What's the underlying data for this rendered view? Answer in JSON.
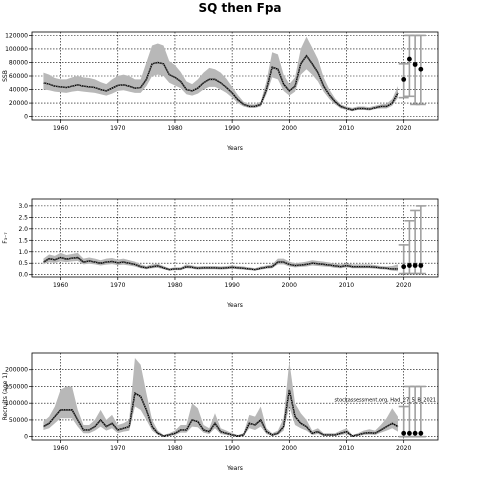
{
  "figure": {
    "title": "SQ then Fpa"
  },
  "chart_data": [
    {
      "type": "line",
      "xlabel": "Years",
      "ylabel": "SSB",
      "xlim": [
        1955,
        2026
      ],
      "ylim": [
        -5000,
        125000
      ],
      "xticks": [
        1960,
        1970,
        1980,
        1990,
        2000,
        2010,
        2020
      ],
      "yticks": [
        0,
        20000,
        40000,
        60000,
        80000,
        100000,
        120000
      ],
      "grid": true,
      "x": [
        1957,
        1958,
        1959,
        1960,
        1961,
        1962,
        1963,
        1964,
        1965,
        1966,
        1967,
        1968,
        1969,
        1970,
        1971,
        1972,
        1973,
        1974,
        1975,
        1976,
        1977,
        1978,
        1979,
        1980,
        1981,
        1982,
        1983,
        1984,
        1985,
        1986,
        1987,
        1988,
        1989,
        1990,
        1991,
        1992,
        1993,
        1994,
        1995,
        1996,
        1997,
        1998,
        1999,
        2000,
        2001,
        2002,
        2003,
        2004,
        2005,
        2006,
        2007,
        2008,
        2009,
        2010,
        2011,
        2012,
        2013,
        2014,
        2015,
        2016,
        2017,
        2018,
        2019
      ],
      "values": [
        50000,
        48000,
        45000,
        44000,
        43000,
        45000,
        47000,
        45000,
        44000,
        43000,
        40000,
        38000,
        42000,
        46000,
        47000,
        45000,
        42000,
        43000,
        55000,
        78000,
        80000,
        78000,
        62000,
        58000,
        52000,
        40000,
        38000,
        42000,
        50000,
        55000,
        55000,
        50000,
        43000,
        35000,
        25000,
        18000,
        15000,
        15000,
        18000,
        40000,
        73000,
        70000,
        48000,
        38000,
        45000,
        78000,
        90000,
        78000,
        65000,
        45000,
        32000,
        22000,
        15000,
        12000,
        10000,
        12000,
        12000,
        11000,
        13000,
        15000,
        15000,
        20000,
        35000
      ],
      "lower": [
        40000,
        39000,
        37000,
        36000,
        35000,
        37000,
        38000,
        37000,
        36000,
        35000,
        33000,
        31000,
        34000,
        38000,
        39000,
        37000,
        35000,
        35000,
        45000,
        60000,
        62000,
        60000,
        50000,
        46000,
        42000,
        33000,
        31000,
        34000,
        40000,
        44000,
        44000,
        40000,
        35000,
        28000,
        20000,
        15000,
        13000,
        13000,
        15000,
        33000,
        58000,
        55000,
        38000,
        31000,
        37000,
        62000,
        70000,
        62000,
        52000,
        37000,
        26000,
        18000,
        12000,
        10000,
        8000,
        10000,
        10000,
        9000,
        11000,
        12000,
        12000,
        16000,
        28000
      ],
      "upper": [
        65000,
        62000,
        57000,
        55000,
        55000,
        58000,
        60000,
        58000,
        57000,
        55000,
        51000,
        48000,
        55000,
        60000,
        62000,
        60000,
        55000,
        55000,
        80000,
        105000,
        108000,
        105000,
        82000,
        76000,
        66000,
        52000,
        48000,
        55000,
        65000,
        72000,
        70000,
        65000,
        56000,
        44000,
        32000,
        22000,
        18000,
        18000,
        22000,
        52000,
        95000,
        92000,
        62000,
        48000,
        58000,
        100000,
        118000,
        102000,
        85000,
        58000,
        40000,
        27000,
        18000,
        15000,
        13000,
        15000,
        15000,
        14000,
        16000,
        18000,
        19000,
        26000,
        45000
      ],
      "projection": {
        "x": [
          2020,
          2021,
          2022,
          2023
        ],
        "values": [
          55000,
          85000,
          77000,
          70000
        ],
        "lower": [
          28000,
          30000,
          18000,
          18000
        ],
        "upper": [
          78000,
          120000,
          120000,
          120000
        ]
      }
    },
    {
      "type": "line",
      "xlabel": "Years",
      "ylabel": "F₃₋₇",
      "xlim": [
        1955,
        2026
      ],
      "ylim": [
        -0.1,
        3.3
      ],
      "xticks": [
        1960,
        1970,
        1980,
        1990,
        2000,
        2010,
        2020
      ],
      "yticks": [
        0.0,
        0.5,
        1.0,
        1.5,
        2.0,
        2.5,
        3.0
      ],
      "grid": true,
      "x": [
        1957,
        1958,
        1959,
        1960,
        1961,
        1962,
        1963,
        1964,
        1965,
        1966,
        1967,
        1968,
        1969,
        1970,
        1971,
        1972,
        1973,
        1974,
        1975,
        1976,
        1977,
        1978,
        1979,
        1980,
        1981,
        1982,
        1983,
        1984,
        1985,
        1986,
        1987,
        1988,
        1989,
        1990,
        1991,
        1992,
        1993,
        1994,
        1995,
        1996,
        1997,
        1998,
        1999,
        2000,
        2001,
        2002,
        2003,
        2004,
        2005,
        2006,
        2007,
        2008,
        2009,
        2010,
        2011,
        2012,
        2013,
        2014,
        2015,
        2016,
        2017,
        2018,
        2019
      ],
      "values": [
        0.55,
        0.7,
        0.65,
        0.75,
        0.68,
        0.72,
        0.75,
        0.55,
        0.6,
        0.55,
        0.5,
        0.55,
        0.58,
        0.52,
        0.55,
        0.5,
        0.45,
        0.35,
        0.3,
        0.35,
        0.38,
        0.3,
        0.22,
        0.25,
        0.25,
        0.35,
        0.32,
        0.28,
        0.3,
        0.3,
        0.3,
        0.28,
        0.3,
        0.32,
        0.3,
        0.28,
        0.25,
        0.22,
        0.28,
        0.32,
        0.35,
        0.55,
        0.55,
        0.45,
        0.4,
        0.42,
        0.45,
        0.5,
        0.48,
        0.45,
        0.42,
        0.38,
        0.35,
        0.4,
        0.35,
        0.35,
        0.35,
        0.35,
        0.33,
        0.3,
        0.28,
        0.25,
        0.25
      ],
      "lower": [
        0.45,
        0.55,
        0.52,
        0.58,
        0.55,
        0.58,
        0.6,
        0.45,
        0.48,
        0.45,
        0.4,
        0.44,
        0.46,
        0.42,
        0.44,
        0.4,
        0.36,
        0.28,
        0.24,
        0.28,
        0.3,
        0.24,
        0.18,
        0.2,
        0.2,
        0.28,
        0.26,
        0.22,
        0.24,
        0.24,
        0.24,
        0.22,
        0.24,
        0.26,
        0.24,
        0.22,
        0.2,
        0.18,
        0.22,
        0.26,
        0.28,
        0.45,
        0.45,
        0.36,
        0.32,
        0.34,
        0.36,
        0.4,
        0.38,
        0.36,
        0.34,
        0.3,
        0.28,
        0.32,
        0.28,
        0.28,
        0.28,
        0.28,
        0.26,
        0.24,
        0.22,
        0.18,
        0.15
      ],
      "upper": [
        0.7,
        0.88,
        0.82,
        0.95,
        0.86,
        0.9,
        0.95,
        0.7,
        0.75,
        0.7,
        0.63,
        0.7,
        0.73,
        0.66,
        0.7,
        0.63,
        0.57,
        0.45,
        0.38,
        0.45,
        0.48,
        0.38,
        0.28,
        0.32,
        0.32,
        0.45,
        0.4,
        0.36,
        0.38,
        0.38,
        0.38,
        0.36,
        0.38,
        0.4,
        0.38,
        0.36,
        0.32,
        0.28,
        0.36,
        0.4,
        0.45,
        0.7,
        0.7,
        0.57,
        0.5,
        0.53,
        0.57,
        0.63,
        0.6,
        0.57,
        0.53,
        0.48,
        0.45,
        0.5,
        0.45,
        0.45,
        0.45,
        0.45,
        0.42,
        0.38,
        0.36,
        0.38,
        0.45
      ],
      "projection": {
        "x": [
          2020,
          2021,
          2022,
          2023
        ],
        "values": [
          0.35,
          0.4,
          0.4,
          0.4
        ],
        "lower": [
          0.05,
          0.05,
          0.05,
          0.05
        ],
        "upper": [
          1.3,
          2.35,
          2.8,
          3.0
        ]
      }
    },
    {
      "type": "line",
      "xlabel": "Years",
      "ylabel": "Recruits (age 1)",
      "xlim": [
        1955,
        2026
      ],
      "ylim": [
        -10000,
        250000
      ],
      "xticks": [
        1960,
        1970,
        1980,
        1990,
        2000,
        2010,
        2020
      ],
      "yticks": [
        0,
        50000,
        100000,
        150000,
        200000
      ],
      "grid": true,
      "annotation": "stockassessment.org, Had_27_5_B_2021",
      "x": [
        1957,
        1958,
        1959,
        1960,
        1961,
        1962,
        1963,
        1964,
        1965,
        1966,
        1967,
        1968,
        1969,
        1970,
        1971,
        1972,
        1973,
        1974,
        1975,
        1976,
        1977,
        1978,
        1979,
        1980,
        1981,
        1982,
        1983,
        1984,
        1985,
        1986,
        1987,
        1988,
        1989,
        1990,
        1991,
        1992,
        1993,
        1994,
        1995,
        1996,
        1997,
        1998,
        1999,
        2000,
        2001,
        2002,
        2003,
        2004,
        2005,
        2006,
        2007,
        2008,
        2009,
        2010,
        2011,
        2012,
        2013,
        2014,
        2015,
        2016,
        2017,
        2018,
        2019
      ],
      "values": [
        30000,
        40000,
        60000,
        80000,
        80000,
        80000,
        50000,
        20000,
        20000,
        30000,
        50000,
        30000,
        40000,
        20000,
        25000,
        30000,
        130000,
        120000,
        80000,
        30000,
        10000,
        2000,
        5000,
        10000,
        20000,
        20000,
        50000,
        45000,
        20000,
        15000,
        40000,
        15000,
        10000,
        5000,
        2000,
        5000,
        40000,
        35000,
        50000,
        15000,
        5000,
        10000,
        30000,
        140000,
        60000,
        40000,
        30000,
        10000,
        15000,
        5000,
        5000,
        5000,
        10000,
        15000,
        2000,
        5000,
        10000,
        12000,
        10000,
        20000,
        30000,
        40000,
        30000
      ],
      "lower": [
        20000,
        25000,
        40000,
        55000,
        55000,
        55000,
        30000,
        10000,
        10000,
        18000,
        30000,
        18000,
        25000,
        10000,
        15000,
        18000,
        90000,
        80000,
        50000,
        18000,
        5000,
        500,
        2000,
        5000,
        12000,
        12000,
        30000,
        28000,
        12000,
        8000,
        25000,
        8000,
        5000,
        2000,
        500,
        2000,
        25000,
        20000,
        30000,
        8000,
        2000,
        5000,
        18000,
        90000,
        35000,
        25000,
        18000,
        5000,
        8000,
        2000,
        2000,
        2000,
        5000,
        8000,
        500,
        2000,
        5000,
        6000,
        5000,
        12000,
        18000,
        25000,
        15000
      ],
      "upper": [
        45000,
        60000,
        90000,
        140000,
        150000,
        150000,
        80000,
        35000,
        35000,
        50000,
        80000,
        50000,
        65000,
        35000,
        40000,
        50000,
        235000,
        215000,
        130000,
        50000,
        18000,
        5000,
        10000,
        18000,
        35000,
        35000,
        100000,
        85000,
        35000,
        25000,
        70000,
        25000,
        18000,
        10000,
        5000,
        10000,
        65000,
        60000,
        90000,
        25000,
        10000,
        18000,
        55000,
        225000,
        100000,
        70000,
        50000,
        18000,
        25000,
        10000,
        10000,
        10000,
        18000,
        25000,
        5000,
        10000,
        18000,
        22000,
        18000,
        35000,
        55000,
        85000,
        60000
      ],
      "projection": {
        "x": [
          2020,
          2021,
          2022,
          2023
        ],
        "values": [
          10000,
          10000,
          10000,
          10000
        ],
        "lower": [
          0,
          0,
          0,
          0
        ],
        "upper": [
          90000,
          150000,
          150000,
          150000
        ]
      }
    }
  ]
}
